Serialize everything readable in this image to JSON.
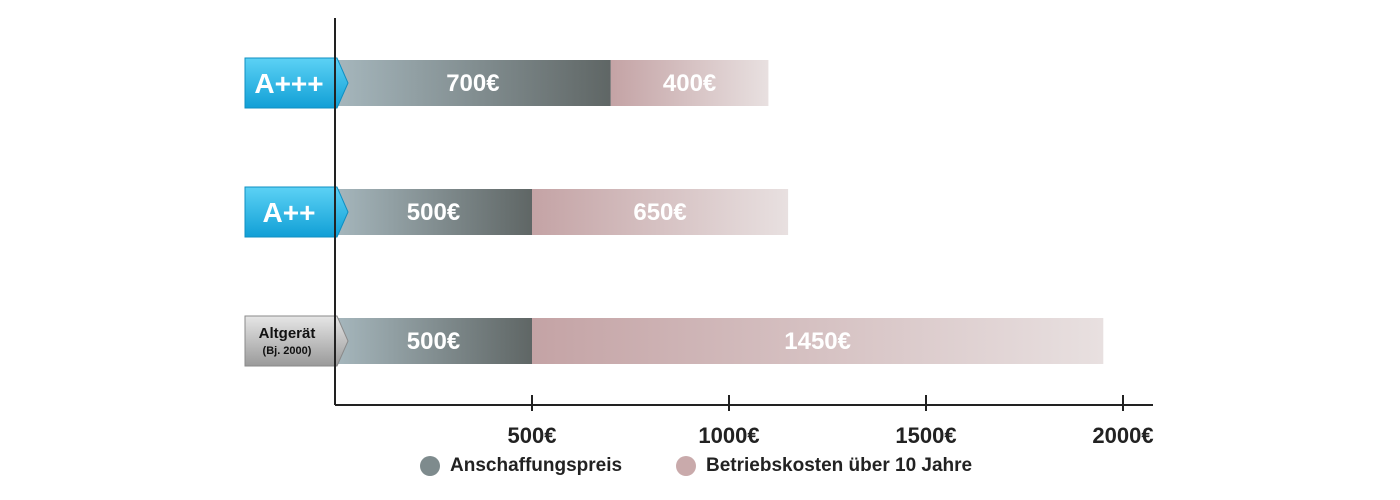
{
  "chart_data": {
    "type": "bar",
    "orientation": "horizontal",
    "stacked": true,
    "categories": [
      "A+++",
      "A++",
      "Altgerät (Bj. 2000)"
    ],
    "category_badges": [
      {
        "lines": [
          "A+++"
        ],
        "color": "#29b6e6"
      },
      {
        "lines": [
          "A++"
        ],
        "color": "#29b6e6"
      },
      {
        "lines": [
          "Altgerät",
          "(Bj. 2000)"
        ],
        "color": "#b8b8b8"
      }
    ],
    "series": [
      {
        "name": "Anschaffungspreis",
        "values": [
          700,
          500,
          500
        ],
        "labels": [
          "700€",
          "500€",
          "500€"
        ],
        "color": "#7e8b8d"
      },
      {
        "name": "Betriebskosten über 10 Jahre",
        "values": [
          400,
          650,
          1450
        ],
        "labels": [
          "400€",
          "650€",
          "1450€"
        ],
        "color": "#c9aaab"
      }
    ],
    "x_ticks": [
      500,
      1000,
      1500,
      2000
    ],
    "x_tick_labels": [
      "500€",
      "1000€",
      "1500€",
      "2000€"
    ],
    "xlim": [
      0,
      2000
    ],
    "legend_position": "bottom",
    "grid": false
  }
}
